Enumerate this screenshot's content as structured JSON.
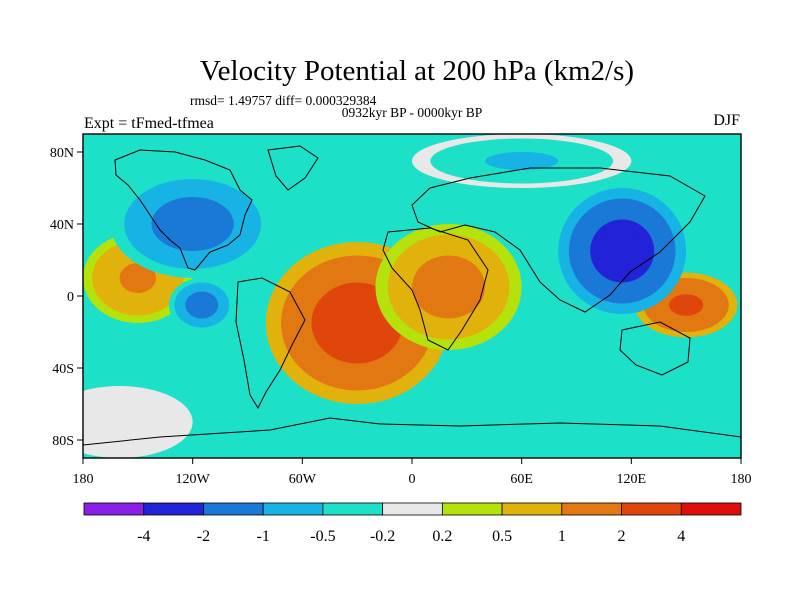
{
  "chart_data": {
    "type": "heatmap",
    "title": "Velocity Potential at 200 hPa (km2/s)",
    "stats_line": "rmsd= 1.49757 diff= 0.000329384",
    "period_line": "0932kyr BP - 0000kyr BP",
    "experiment_label": "Expt = tFmed-tfmea",
    "season_label": "DJF",
    "units": "km2/s",
    "x_ticks": [
      "180",
      "120W",
      "60W",
      "0",
      "60E",
      "120E",
      "180"
    ],
    "x_tick_values": [
      -180,
      -120,
      -60,
      0,
      60,
      120,
      180
    ],
    "y_ticks": [
      "80N",
      "40N",
      "0",
      "40S",
      "80S"
    ],
    "y_tick_values": [
      80,
      40,
      0,
      -40,
      -80
    ],
    "xlim": [
      -180,
      180
    ],
    "ylim": [
      -90,
      90
    ],
    "colorbar": {
      "levels": [
        "-4",
        "-2",
        "-1",
        "-0.5",
        "-0.2",
        "0.2",
        "0.5",
        "1",
        "2",
        "4"
      ],
      "colors": [
        "#8a1fe6",
        "#2222d8",
        "#1a78d6",
        "#16b3e4",
        "#1de0c8",
        "#e8e8e8",
        "#b6e20c",
        "#e2b20c",
        "#e27812",
        "#e0460c",
        "#e00c0c"
      ]
    },
    "field_centers": [
      {
        "lon": -30,
        "lat": -15,
        "value": 3.2,
        "lon_width": 50,
        "lat_width": 45
      },
      {
        "lon": 20,
        "lat": 5,
        "value": 1.6,
        "lon_width": 40,
        "lat_width": 35
      },
      {
        "lon": -150,
        "lat": 10,
        "value": 1.4,
        "lon_width": 30,
        "lat_width": 25
      },
      {
        "lon": 150,
        "lat": -5,
        "value": 2.6,
        "lon_width": 28,
        "lat_width": 18
      },
      {
        "lon": -120,
        "lat": 40,
        "value": -1.6,
        "lon_width": 45,
        "lat_width": 30
      },
      {
        "lon": -115,
        "lat": -5,
        "value": -1.7,
        "lon_width": 18,
        "lat_width": 15
      },
      {
        "lon": 115,
        "lat": 25,
        "value": -3.0,
        "lon_width": 35,
        "lat_width": 35
      },
      {
        "lon": 60,
        "lat": 75,
        "value": -0.6,
        "lon_width": 60,
        "lat_width": 15
      },
      {
        "lon": -160,
        "lat": -70,
        "value": 0.1,
        "lon_width": 40,
        "lat_width": 20
      }
    ]
  }
}
